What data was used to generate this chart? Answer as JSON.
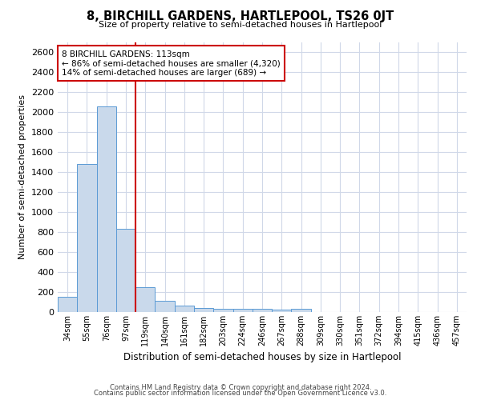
{
  "title": "8, BIRCHILL GARDENS, HARTLEPOOL, TS26 0JT",
  "subtitle": "Size of property relative to semi-detached houses in Hartlepool",
  "xlabel": "Distribution of semi-detached houses by size in Hartlepool",
  "ylabel": "Number of semi-detached properties",
  "categories": [
    "34sqm",
    "55sqm",
    "76sqm",
    "97sqm",
    "119sqm",
    "140sqm",
    "161sqm",
    "182sqm",
    "203sqm",
    "224sqm",
    "246sqm",
    "267sqm",
    "288sqm",
    "309sqm",
    "330sqm",
    "351sqm",
    "372sqm",
    "394sqm",
    "415sqm",
    "436sqm",
    "457sqm"
  ],
  "values": [
    150,
    1480,
    2060,
    830,
    250,
    115,
    65,
    40,
    30,
    30,
    30,
    25,
    30,
    0,
    0,
    0,
    0,
    0,
    0,
    0,
    0
  ],
  "bar_color": "#c9d9eb",
  "bar_edge_color": "#5b9bd5",
  "vline_x": 3.5,
  "annotation_title": "8 BIRCHILL GARDENS: 113sqm",
  "annotation_line1": "← 86% of semi-detached houses are smaller (4,320)",
  "annotation_line2": "14% of semi-detached houses are larger (689) →",
  "annotation_box_color": "#ffffff",
  "annotation_box_edge_color": "#cc0000",
  "vline_color": "#cc0000",
  "ylim": [
    0,
    2700
  ],
  "yticks": [
    0,
    200,
    400,
    600,
    800,
    1000,
    1200,
    1400,
    1600,
    1800,
    2000,
    2200,
    2400,
    2600
  ],
  "grid_color": "#d0d8e8",
  "background_color": "#ffffff",
  "footer1": "Contains HM Land Registry data © Crown copyright and database right 2024.",
  "footer2": "Contains public sector information licensed under the Open Government Licence v3.0."
}
